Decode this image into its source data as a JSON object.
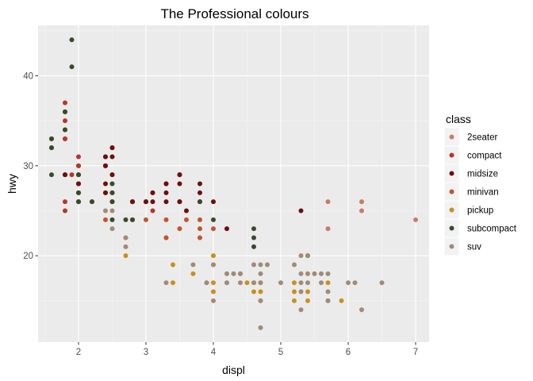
{
  "chart_data": {
    "type": "scatter",
    "title": "The Professional colours",
    "xlabel": "displ",
    "ylabel": "hwy",
    "xlim": [
      1.4,
      7.2
    ],
    "ylim": [
      10.4,
      45.6
    ],
    "x_ticks": [
      2,
      3,
      4,
      5,
      6,
      7
    ],
    "y_ticks": [
      20,
      30,
      40
    ],
    "grid": true,
    "legend": {
      "title": "class",
      "position": "right"
    },
    "series": [
      {
        "name": "2seater",
        "color": "#c97b68",
        "points": [
          [
            5.7,
            26
          ],
          [
            5.7,
            23
          ],
          [
            6.2,
            26
          ],
          [
            6.2,
            25
          ],
          [
            7.0,
            24
          ]
        ]
      },
      {
        "name": "compact",
        "color": "#b8352a",
        "points": [
          [
            1.8,
            29
          ],
          [
            1.8,
            29
          ],
          [
            2.0,
            31
          ],
          [
            2.0,
            30
          ],
          [
            2.8,
            26
          ],
          [
            2.8,
            26
          ],
          [
            3.1,
            27
          ],
          [
            1.8,
            26
          ],
          [
            1.8,
            25
          ],
          [
            2.0,
            28
          ],
          [
            2.0,
            29
          ],
          [
            2.8,
            26
          ],
          [
            2.8,
            24
          ],
          [
            3.1,
            25
          ],
          [
            2.2,
            26
          ],
          [
            2.4,
            27
          ],
          [
            2.4,
            30
          ],
          [
            3.0,
            26
          ],
          [
            3.0,
            26
          ],
          [
            1.8,
            37
          ],
          [
            1.8,
            35
          ],
          [
            1.8,
            33
          ],
          [
            2.0,
            30
          ],
          [
            2.0,
            29
          ],
          [
            2.4,
            31
          ],
          [
            2.5,
            27
          ],
          [
            1.9,
            29
          ],
          [
            2.0,
            28
          ],
          [
            2.5,
            29
          ],
          [
            1.8,
            33
          ],
          [
            1.8,
            34
          ]
        ]
      },
      {
        "name": "midsize",
        "color": "#6b0f0f",
        "points": [
          [
            2.4,
            30
          ],
          [
            2.5,
            32
          ],
          [
            2.5,
            32
          ],
          [
            3.1,
            27
          ],
          [
            3.5,
            26
          ],
          [
            3.8,
            26
          ],
          [
            3.3,
            28
          ],
          [
            3.8,
            27
          ],
          [
            3.8,
            28
          ],
          [
            2.4,
            31
          ],
          [
            2.4,
            30
          ],
          [
            2.5,
            29
          ],
          [
            3.0,
            26
          ],
          [
            3.3,
            28
          ],
          [
            3.3,
            26
          ],
          [
            3.5,
            29
          ],
          [
            3.5,
            26
          ],
          [
            3.3,
            27
          ],
          [
            3.1,
            26
          ],
          [
            2.4,
            27
          ],
          [
            4.2,
            23
          ],
          [
            5.3,
            25
          ],
          [
            2.8,
            26
          ],
          [
            3.6,
            25
          ],
          [
            1.8,
            29
          ],
          [
            2.0,
            28
          ],
          [
            2.0,
            27
          ],
          [
            2.5,
            31
          ],
          [
            3.5,
            28
          ],
          [
            3.5,
            29
          ],
          [
            4.0,
            26
          ],
          [
            2.0,
            26
          ],
          [
            2.4,
            28
          ],
          [
            2.5,
            26
          ]
        ]
      },
      {
        "name": "minivan",
        "color": "#c0552e",
        "points": [
          [
            2.4,
            24
          ],
          [
            3.0,
            24
          ],
          [
            3.3,
            22
          ],
          [
            3.3,
            22
          ],
          [
            3.3,
            24
          ],
          [
            3.8,
            24
          ],
          [
            3.8,
            23
          ],
          [
            3.8,
            22
          ],
          [
            4.0,
            23
          ],
          [
            3.5,
            23
          ],
          [
            3.6,
            24
          ]
        ]
      },
      {
        "name": "pickup",
        "color": "#c8901e",
        "points": [
          [
            2.7,
            20
          ],
          [
            2.7,
            22
          ],
          [
            3.4,
            17
          ],
          [
            3.4,
            19
          ],
          [
            3.7,
            18
          ],
          [
            4.0,
            16
          ],
          [
            4.0,
            20
          ],
          [
            4.2,
            17
          ],
          [
            4.6,
            16
          ],
          [
            4.7,
            15
          ],
          [
            4.7,
            16
          ],
          [
            5.2,
            15
          ],
          [
            5.4,
            15
          ],
          [
            5.7,
            17
          ],
          [
            5.9,
            15
          ],
          [
            4.5,
            17
          ],
          [
            4.7,
            17
          ],
          [
            5.2,
            17
          ],
          [
            5.4,
            16
          ],
          [
            4.6,
            17
          ],
          [
            4.0,
            17
          ],
          [
            5.2,
            16
          ]
        ]
      },
      {
        "name": "subcompact",
        "color": "#394a29",
        "points": [
          [
            1.6,
            32
          ],
          [
            1.6,
            33
          ],
          [
            1.6,
            32
          ],
          [
            1.6,
            29
          ],
          [
            1.8,
            34
          ],
          [
            1.8,
            36
          ],
          [
            1.8,
            36
          ],
          [
            2.0,
            29
          ],
          [
            2.0,
            26
          ],
          [
            2.0,
            27
          ],
          [
            2.2,
            26
          ],
          [
            2.5,
            24
          ],
          [
            2.5,
            28
          ],
          [
            1.9,
            44
          ],
          [
            1.9,
            41
          ],
          [
            2.7,
            24
          ],
          [
            3.8,
            26
          ],
          [
            4.0,
            24
          ],
          [
            4.6,
            23
          ],
          [
            4.6,
            22
          ],
          [
            4.6,
            21
          ],
          [
            5.4,
            20
          ],
          [
            1.6,
            33
          ],
          [
            2.5,
            26
          ],
          [
            2.5,
            27
          ],
          [
            2.8,
            24
          ]
        ]
      },
      {
        "name": "suv",
        "color": "#a08b77",
        "points": [
          [
            4.2,
            17
          ],
          [
            4.7,
            12
          ],
          [
            5.3,
            17
          ],
          [
            5.3,
            18
          ],
          [
            5.7,
            15
          ],
          [
            6.0,
            17
          ],
          [
            5.3,
            14
          ],
          [
            6.1,
            17
          ],
          [
            4.0,
            15
          ],
          [
            4.6,
            17
          ],
          [
            5.0,
            17
          ],
          [
            6.5,
            17
          ],
          [
            5.2,
            19
          ],
          [
            5.7,
            15
          ],
          [
            4.7,
            15
          ],
          [
            3.3,
            17
          ],
          [
            3.9,
            17
          ],
          [
            4.4,
            18
          ],
          [
            5.3,
            16
          ],
          [
            4.3,
            18
          ],
          [
            5.6,
            18
          ],
          [
            4.4,
            17
          ],
          [
            4.4,
            18
          ],
          [
            4.0,
            19
          ],
          [
            3.9,
            17
          ],
          [
            4.7,
            17
          ],
          [
            5.4,
            20
          ],
          [
            5.4,
            17
          ],
          [
            2.5,
            23
          ],
          [
            2.7,
            22
          ],
          [
            4.0,
            19
          ],
          [
            4.6,
            19
          ],
          [
            4.7,
            19
          ],
          [
            5.7,
            18
          ],
          [
            5.3,
            20
          ],
          [
            6.2,
            14
          ],
          [
            5.7,
            16
          ],
          [
            2.7,
            21
          ],
          [
            3.7,
            19
          ],
          [
            4.8,
            19
          ],
          [
            4.7,
            18
          ],
          [
            5.4,
            18
          ],
          [
            2.4,
            25
          ],
          [
            2.5,
            25
          ],
          [
            4.2,
            18
          ],
          [
            5.6,
            17
          ],
          [
            5.5,
            18
          ]
        ]
      }
    ]
  }
}
